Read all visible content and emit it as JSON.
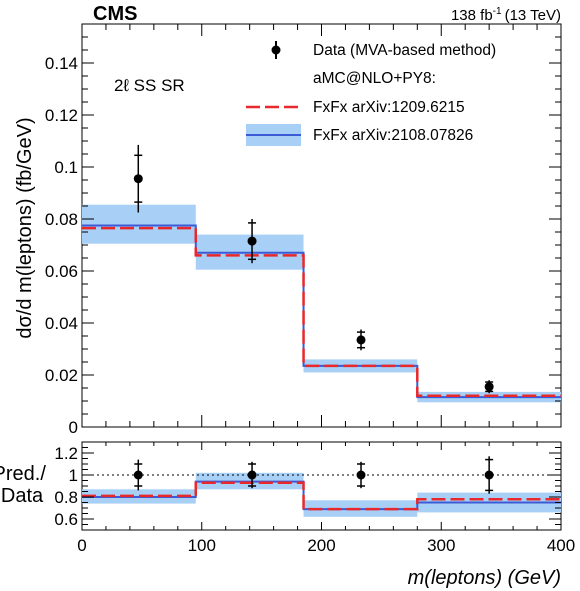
{
  "header": {
    "experiment": "CMS",
    "lumi_text": "138 fb",
    "lumi_sup": "-1",
    "energy": "(13 TeV)"
  },
  "region_label": "2ℓ SS SR",
  "legend": {
    "data": "Data (MVA-based method)",
    "generator": "aMC@NLO+PY8:",
    "fxfx_old": "FxFx arXiv:1209.6215",
    "fxfx_new": "FxFx arXiv:2108.07826"
  },
  "colors": {
    "data": "#000000",
    "fxfx_old_line": "#e8282b",
    "fxfx_new_line": "#3b5bd6",
    "fxfx_new_band": "#a8cff5",
    "ratio_ref": "#000000"
  },
  "chart_data": [
    {
      "type": "line",
      "panel": "main",
      "ylabel": "dσ/d m(leptons)  (fb/GeV)",
      "ylim": [
        0,
        0.155
      ],
      "xlim": [
        0,
        400
      ],
      "yticks": [
        "0",
        "0.02",
        "0.04",
        "0.06",
        "0.08",
        "0.1",
        "0.12",
        "0.14"
      ],
      "bin_edges": [
        0,
        95,
        185,
        280,
        400
      ],
      "data": {
        "name": "Data (MVA-based method)",
        "x": [
          47,
          142,
          233,
          340
        ],
        "y": [
          0.0955,
          0.0715,
          0.0335,
          0.0155
        ],
        "err_syst": [
          0.009,
          0.007,
          0.003,
          0.0018
        ],
        "err_total": [
          0.013,
          0.0085,
          0.004,
          0.0025
        ]
      },
      "series": [
        {
          "name": "FxFx arXiv:1209.6215",
          "values": [
            0.0765,
            0.066,
            0.0235,
            0.012
          ]
        },
        {
          "name": "FxFx arXiv:2108.07826",
          "values": [
            0.0775,
            0.067,
            0.0235,
            0.0115
          ],
          "band_low": [
            0.0705,
            0.0605,
            0.021,
            0.0095
          ],
          "band_high": [
            0.0855,
            0.074,
            0.026,
            0.0135
          ]
        }
      ]
    },
    {
      "type": "line",
      "panel": "ratio",
      "ylabel": "Pred./ Data",
      "ylim": [
        0.5,
        1.3
      ],
      "xlim": [
        0,
        400
      ],
      "yticks": [
        "0.6",
        "0.8",
        "1",
        "1.2"
      ],
      "xticks": [
        "0",
        "100",
        "200",
        "300",
        "400"
      ],
      "xlabel": "m(leptons) (GeV)",
      "bin_edges": [
        0,
        95,
        185,
        280,
        400
      ],
      "data": {
        "x": [
          47,
          142,
          233,
          340
        ],
        "y": [
          1.0,
          1.0,
          1.0,
          1.0
        ],
        "err_syst": [
          0.1,
          0.1,
          0.1,
          0.14
        ],
        "err_total": [
          0.14,
          0.12,
          0.12,
          0.17
        ]
      },
      "series": [
        {
          "name": "FxFx arXiv:1209.6215",
          "values": [
            0.81,
            0.93,
            0.69,
            0.78
          ]
        },
        {
          "name": "FxFx arXiv:2108.07826",
          "values": [
            0.8,
            0.94,
            0.69,
            0.75
          ],
          "band_low": [
            0.74,
            0.87,
            0.62,
            0.66
          ],
          "band_high": [
            0.87,
            1.02,
            0.77,
            0.84
          ]
        }
      ]
    }
  ]
}
